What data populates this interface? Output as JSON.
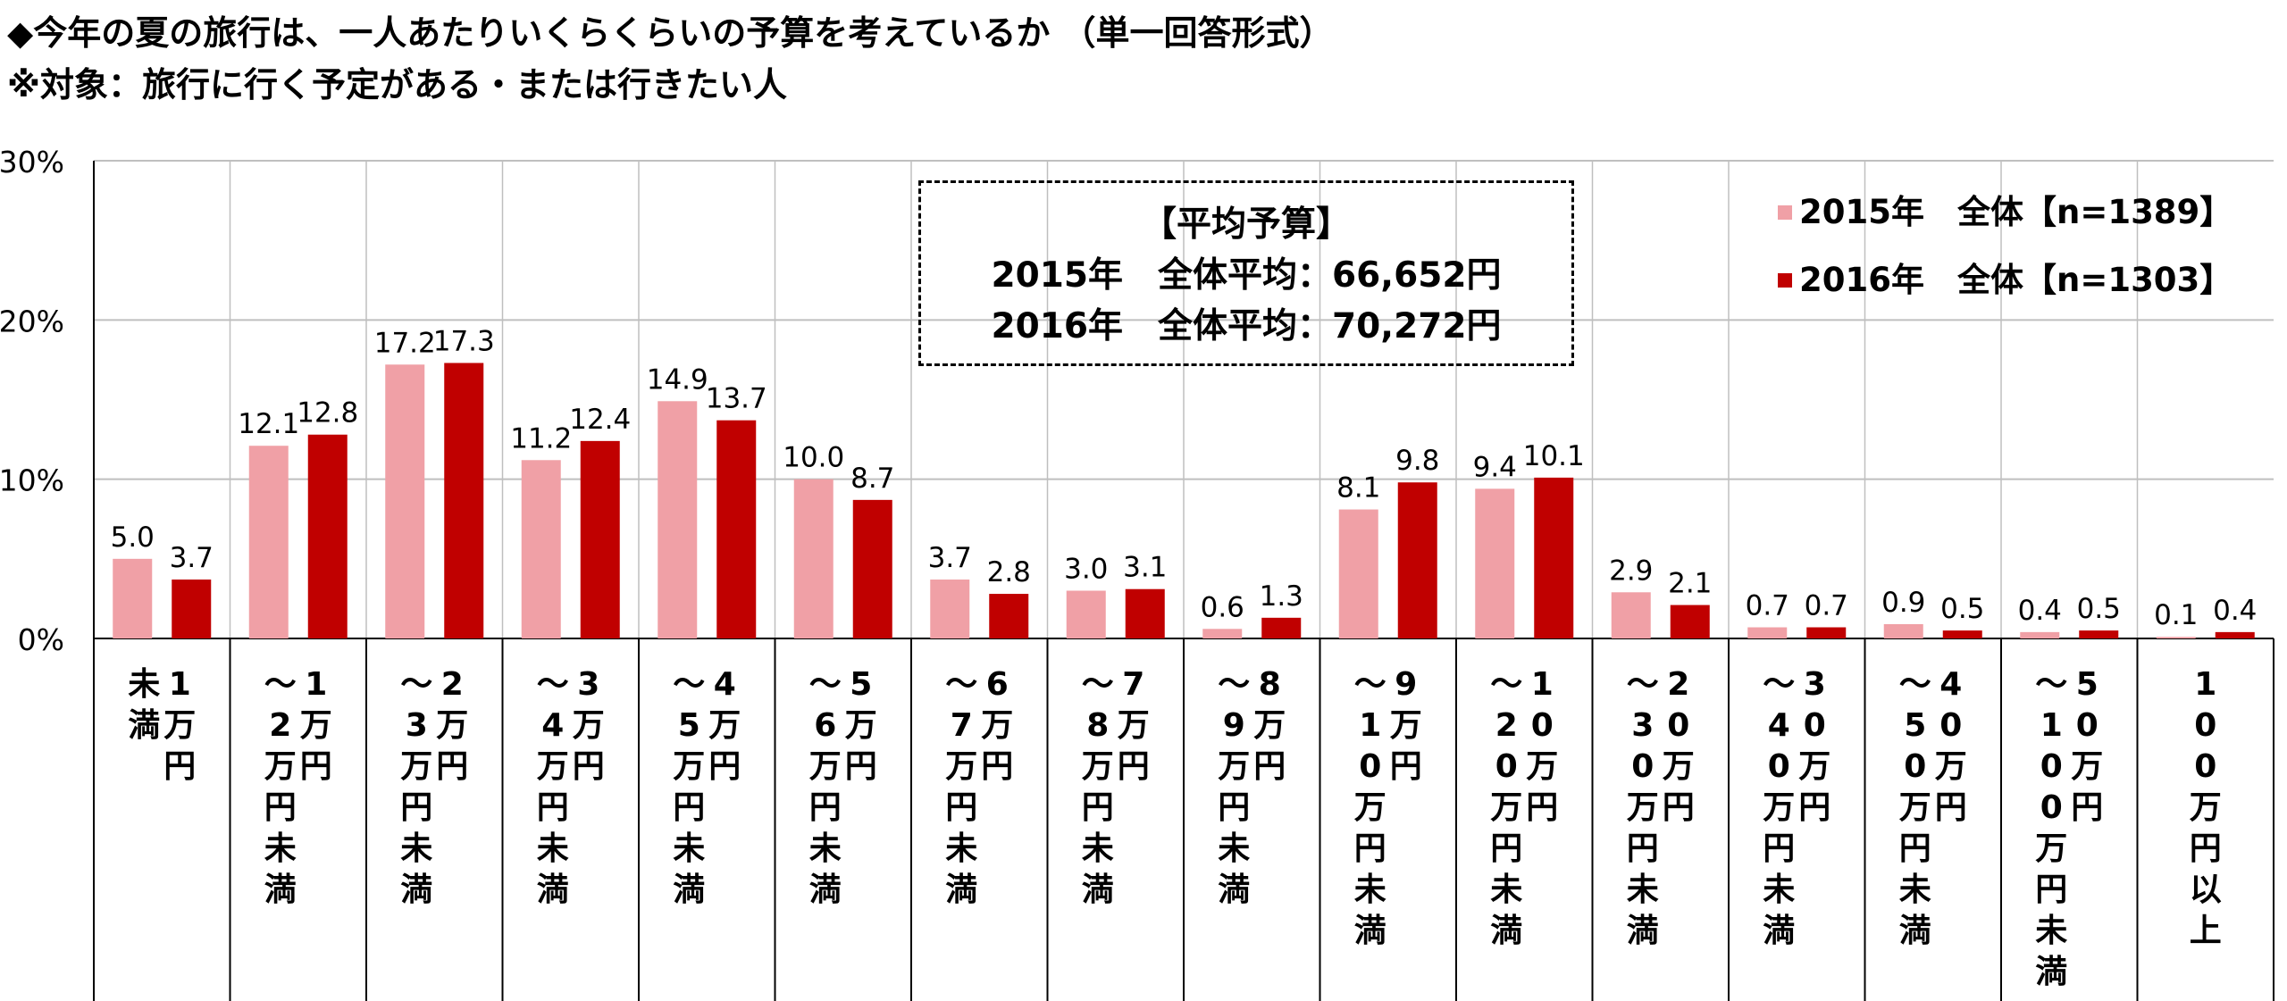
{
  "title": {
    "line1": "◆今年の夏の旅行は、一人あたりいくらくらいの予算を考えているか （単一回答形式）",
    "line2": "※対象：旅行に行く予定がある・または行きたい人"
  },
  "average_box": {
    "heading": "【平均予算】",
    "line1": "2015年　全体平均：66,652円",
    "line2": "2016年　全体平均：70,272円"
  },
  "colors": {
    "series_2015": "#F0A0A6",
    "series_2016": "#C00000",
    "grid": "#BFBFBF",
    "axis": "#000000"
  },
  "chart_data": {
    "type": "bar",
    "ylim": [
      0,
      30
    ],
    "yticks": [
      "0%",
      "10%",
      "20%",
      "30%"
    ],
    "legend_position": "top-right",
    "categories": [
      "1万円未満",
      "1万円～2万円未満",
      "2万円～3万円未満",
      "3万円～4万円未満",
      "4万円～5万円未満",
      "5万円～6万円未満",
      "6万円～7万円未満",
      "7万円～8万円未満",
      "8万円～9万円未満",
      "9万円～10万円未満",
      "10万円～20万円未満",
      "20万円～30万円未満",
      "30万円～40万円未満",
      "40万円～50万円未満",
      "50万円～100万円未満",
      "100万円以上"
    ],
    "category_labels": [
      {
        "right": "1万円",
        "left": "未満"
      },
      {
        "right": "1万円",
        "left": "～2万円未満"
      },
      {
        "right": "2万円",
        "left": "～3万円未満"
      },
      {
        "right": "3万円",
        "left": "～4万円未満"
      },
      {
        "right": "4万円",
        "left": "～5万円未満"
      },
      {
        "right": "5万円",
        "left": "～6万円未満"
      },
      {
        "right": "6万円",
        "left": "～7万円未満"
      },
      {
        "right": "7万円",
        "left": "～8万円未満"
      },
      {
        "right": "8万円",
        "left": "～9万円未満"
      },
      {
        "right": "9万円",
        "left": "～10万円未満"
      },
      {
        "right": "10万円",
        "left": "～20万円未満"
      },
      {
        "right": "20万円",
        "left": "～30万円未満"
      },
      {
        "right": "30万円",
        "left": "～40万円未満"
      },
      {
        "right": "40万円",
        "left": "～50万円未満"
      },
      {
        "right": "50万円",
        "left": "～100万円未満"
      },
      {
        "right": "",
        "left": "100万円以上"
      }
    ],
    "series": [
      {
        "name": "2015年　全体【n=1389】",
        "values": [
          5.0,
          12.1,
          17.2,
          11.2,
          14.9,
          10.0,
          3.7,
          3.0,
          0.6,
          8.1,
          9.4,
          2.9,
          0.7,
          0.9,
          0.4,
          0.1
        ]
      },
      {
        "name": "2016年　全体【n=1303】",
        "values": [
          3.7,
          12.8,
          17.3,
          12.4,
          13.7,
          8.7,
          2.8,
          3.1,
          1.3,
          9.8,
          10.1,
          2.1,
          0.7,
          0.5,
          0.5,
          0.4
        ]
      }
    ]
  }
}
